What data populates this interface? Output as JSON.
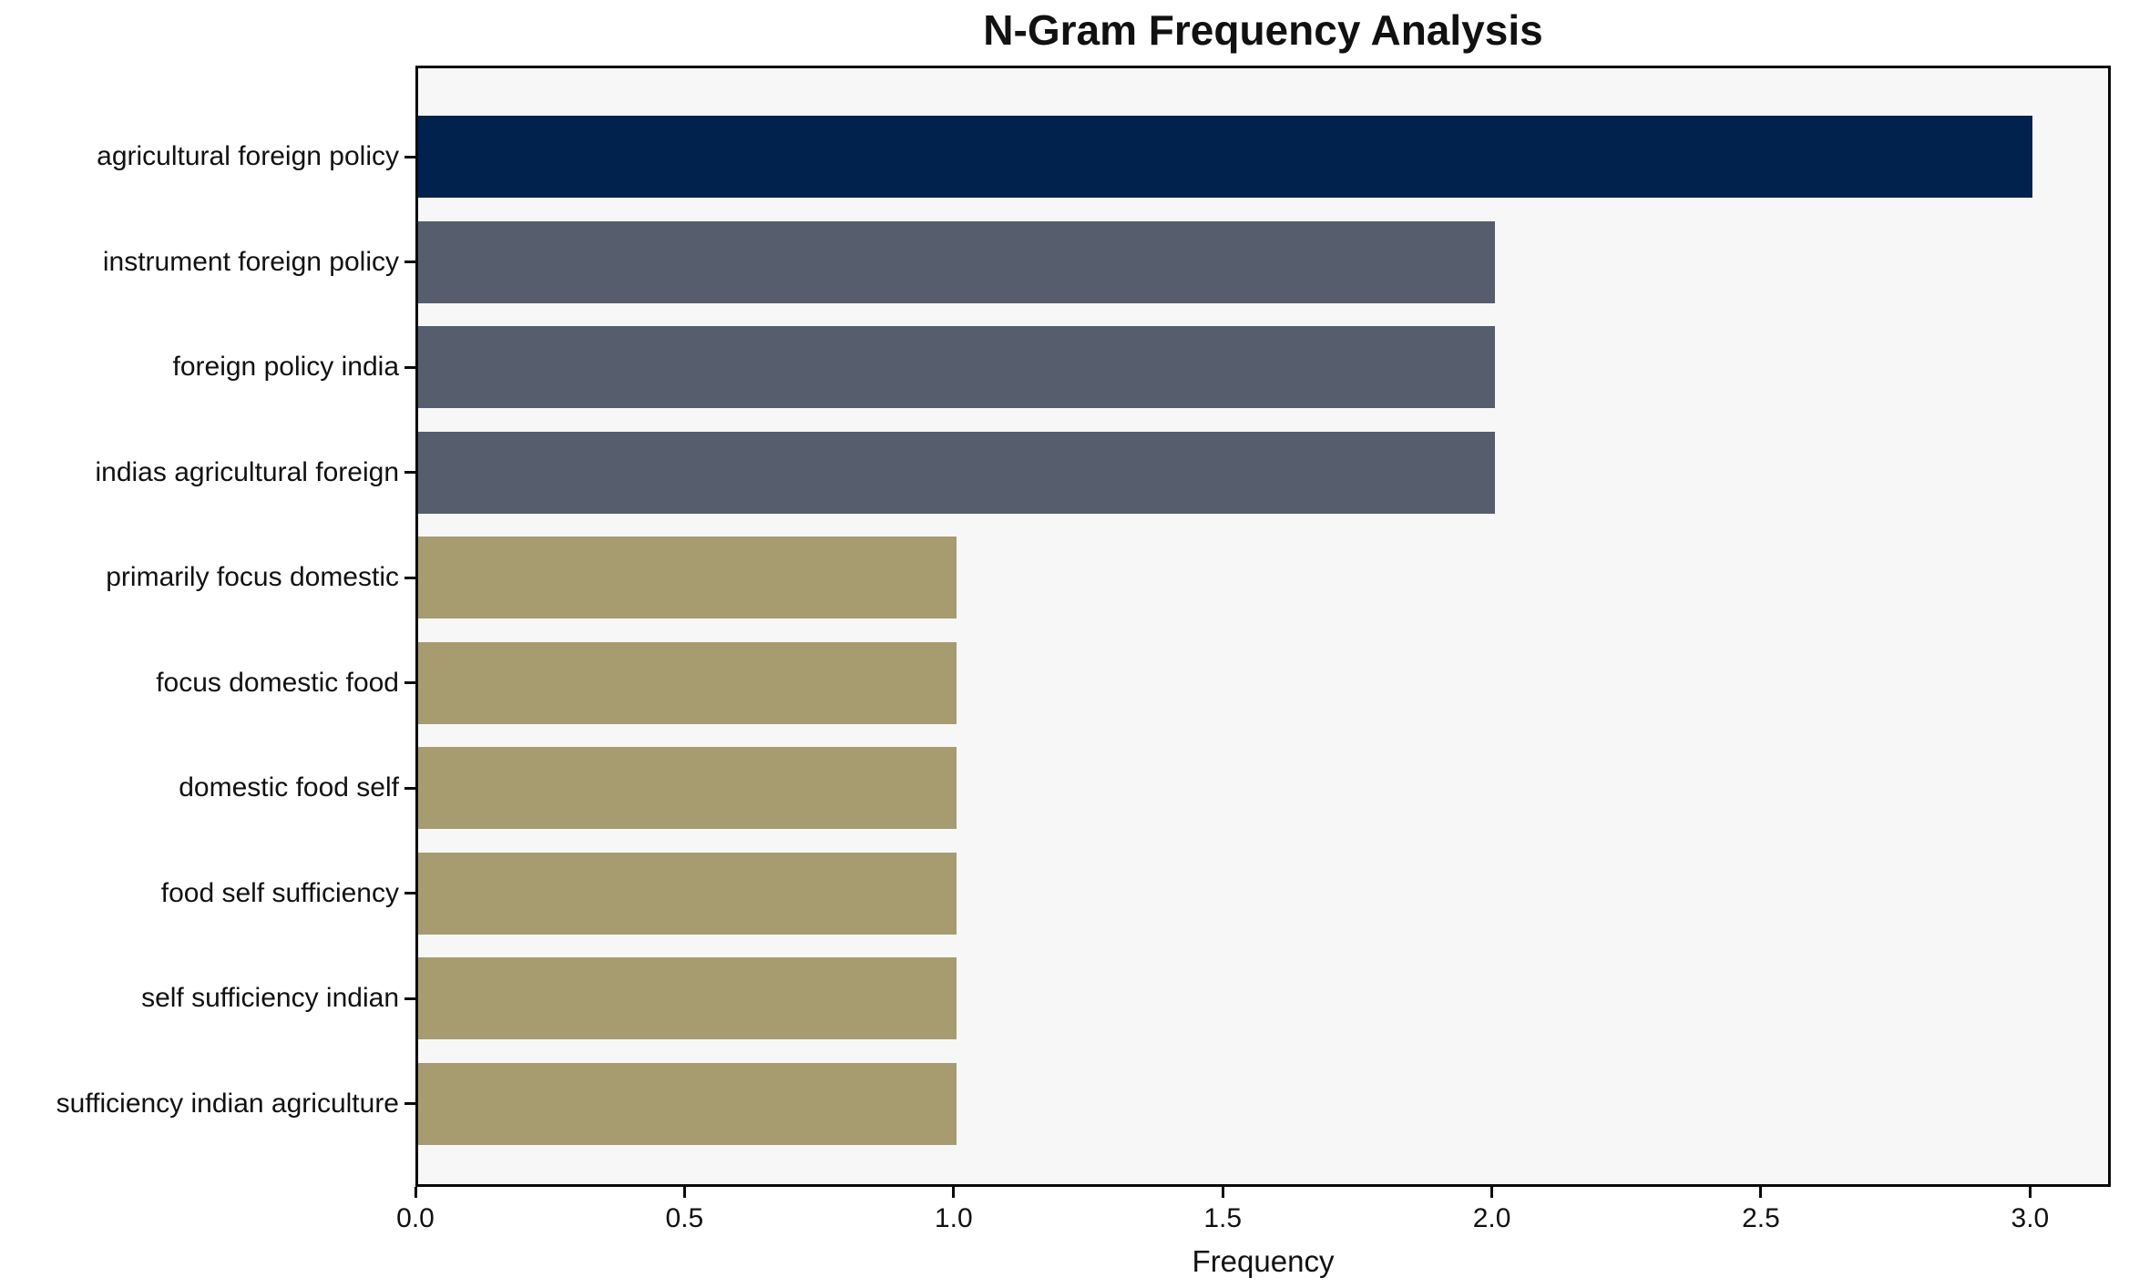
{
  "chart_data": {
    "type": "bar",
    "orientation": "horizontal",
    "title": "N-Gram Frequency Analysis",
    "xlabel": "Frequency",
    "ylabel": "",
    "categories": [
      "agricultural foreign policy",
      "instrument foreign policy",
      "foreign policy india",
      "indias agricultural foreign",
      "primarily focus domestic",
      "focus domestic food",
      "domestic food self",
      "food self sufficiency",
      "self sufficiency indian",
      "sufficiency indian agriculture"
    ],
    "values": [
      3,
      2,
      2,
      2,
      1,
      1,
      1,
      1,
      1,
      1
    ],
    "bar_colors": [
      "#02224e",
      "#565d6d",
      "#565d6d",
      "#565d6d",
      "#a69c70",
      "#a69c70",
      "#a69c70",
      "#a69c70",
      "#a69c70",
      "#a69c70"
    ],
    "x_tick_labels": [
      "0.0",
      "0.5",
      "1.0",
      "1.5",
      "2.0",
      "2.5",
      "3.0"
    ],
    "x_tick_values": [
      0,
      0.5,
      1.0,
      1.5,
      2.0,
      2.5,
      3.0
    ],
    "xlim": [
      0,
      3.15
    ],
    "grid": false,
    "legend": null,
    "plot_background": "#f7f7f8",
    "figure_background": "#ffffff",
    "spine_color": "#0a0a0a",
    "text_color": "#111111"
  }
}
